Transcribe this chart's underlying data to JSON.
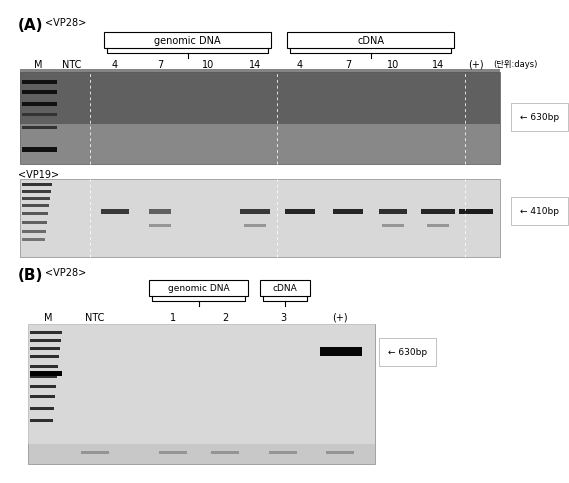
{
  "fig_width": 5.33,
  "fig_height": 4.64,
  "bg_color": "#ffffff",
  "panel_A": {
    "label": "(A)",
    "vp28_label": "<VP28>",
    "vp19_label": "<VP19>",
    "lane_labels": [
      "M",
      "NTC",
      "4",
      "7",
      "10",
      "14",
      "4",
      "7",
      "10",
      "14",
      "(+)",
      "(단위:days)"
    ],
    "genomic_dna_label": "genomic DNA",
    "cdna_label": "cDNA",
    "band_630_label": "← 630bp",
    "band_410_label": "← 410bp",
    "gel1_color": "#b0b0b0",
    "gel2_color": "#c8c8c8",
    "gel1_bg": "#888888",
    "gel2_bg": "#d0d0d0"
  },
  "panel_B": {
    "label": "(B)",
    "vp28_label": "<VP28>",
    "lane_labels": [
      "M",
      "NTC",
      "1",
      "2",
      "3",
      "(+)"
    ],
    "genomic_dna_label": "genomic DNA",
    "cdna_label": "cDNA",
    "band_630_label": "← 630bp",
    "gel_color": "#d0d0d0"
  }
}
